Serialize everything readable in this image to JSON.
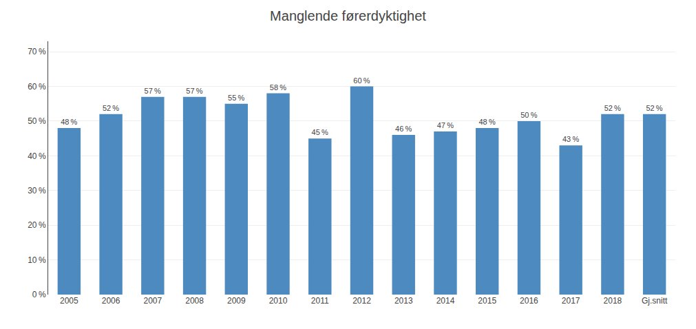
{
  "chart_data": {
    "type": "bar",
    "title": "Manglende førerdyktighet",
    "categories": [
      "2005",
      "2006",
      "2007",
      "2008",
      "2009",
      "2010",
      "2011",
      "2012",
      "2013",
      "2014",
      "2015",
      "2016",
      "2017",
      "2018",
      "Gj.snitt"
    ],
    "values": [
      0.48,
      0.52,
      0.57,
      0.57,
      0.55,
      0.58,
      0.45,
      0.6,
      0.46,
      0.47,
      0.48,
      0.5,
      0.43,
      0.52,
      0.52
    ],
    "value_labels": [
      "48 %",
      "52 %",
      "57 %",
      "57 %",
      "55 %",
      "58 %",
      "45 %",
      "60 %",
      "46 %",
      "47 %",
      "48 %",
      "50 %",
      "43 %",
      "52 %",
      "52 %"
    ],
    "data_labels": true,
    "color": "#4d8abf",
    "ylim": [
      0,
      0.73
    ],
    "yticks": [
      {
        "value": 0.0,
        "label": "0 %"
      },
      {
        "value": 0.1,
        "label": "10 %"
      },
      {
        "value": 0.2,
        "label": "20 %"
      },
      {
        "value": 0.3,
        "label": "30 %"
      },
      {
        "value": 0.4,
        "label": "40 %"
      },
      {
        "value": 0.5,
        "label": "50 %"
      },
      {
        "value": 0.6,
        "label": "60 %"
      },
      {
        "value": 0.7,
        "label": "70 %"
      }
    ],
    "grid": true
  }
}
